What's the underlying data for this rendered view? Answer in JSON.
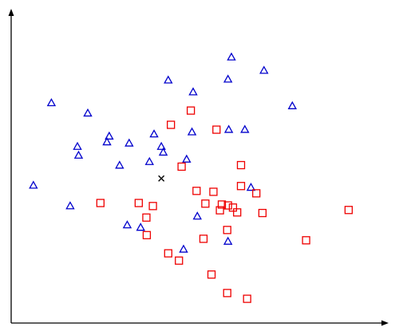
{
  "chart_data": {
    "type": "scatter",
    "title": "",
    "xlabel": "",
    "ylabel": "",
    "xlim": [
      0,
      10
    ],
    "ylim": [
      0,
      10
    ],
    "grid": false,
    "legend": "none",
    "series": [
      {
        "marker": "triangle",
        "color": "#0000cc",
        "points": [
          [
            5.75,
            8.77
          ],
          [
            6.6,
            8.33
          ],
          [
            5.66,
            8.04
          ],
          [
            4.1,
            8.01
          ],
          [
            4.75,
            7.62
          ],
          [
            1.05,
            7.26
          ],
          [
            2.0,
            6.92
          ],
          [
            7.34,
            7.16
          ],
          [
            5.68,
            6.38
          ],
          [
            6.1,
            6.38
          ],
          [
            4.72,
            6.3
          ],
          [
            3.73,
            6.23
          ],
          [
            2.56,
            6.16
          ],
          [
            2.5,
            5.97
          ],
          [
            3.08,
            5.93
          ],
          [
            1.73,
            5.82
          ],
          [
            3.92,
            5.82
          ],
          [
            1.76,
            5.53
          ],
          [
            3.97,
            5.63
          ],
          [
            4.58,
            5.4
          ],
          [
            3.61,
            5.32
          ],
          [
            2.83,
            5.2
          ],
          [
            0.58,
            4.54
          ],
          [
            6.26,
            4.47
          ],
          [
            1.54,
            3.86
          ],
          [
            4.86,
            3.52
          ],
          [
            3.03,
            3.23
          ],
          [
            3.38,
            3.15
          ],
          [
            5.66,
            2.69
          ],
          [
            4.5,
            2.43
          ]
        ]
      },
      {
        "marker": "square",
        "color": "#ee0000",
        "points": [
          [
            4.69,
            7.01
          ],
          [
            4.17,
            6.54
          ],
          [
            5.36,
            6.38
          ],
          [
            6.0,
            5.21
          ],
          [
            4.45,
            5.16
          ],
          [
            6.0,
            4.52
          ],
          [
            4.84,
            4.36
          ],
          [
            5.28,
            4.33
          ],
          [
            6.4,
            4.28
          ],
          [
            2.33,
            3.96
          ],
          [
            3.33,
            3.96
          ],
          [
            5.07,
            3.94
          ],
          [
            5.5,
            3.91
          ],
          [
            5.66,
            3.88
          ],
          [
            3.7,
            3.86
          ],
          [
            5.79,
            3.81
          ],
          [
            5.45,
            3.72
          ],
          [
            5.9,
            3.65
          ],
          [
            6.56,
            3.63
          ],
          [
            8.81,
            3.73
          ],
          [
            3.53,
            3.48
          ],
          [
            5.64,
            3.07
          ],
          [
            3.54,
            2.9
          ],
          [
            5.02,
            2.78
          ],
          [
            7.7,
            2.73
          ],
          [
            4.1,
            2.3
          ],
          [
            4.38,
            2.06
          ],
          [
            5.23,
            1.6
          ],
          [
            5.64,
            0.99
          ],
          [
            6.16,
            0.8
          ]
        ]
      },
      {
        "marker": "cross",
        "color": "#000000",
        "points": [
          [
            3.92,
            4.77
          ]
        ]
      }
    ]
  }
}
